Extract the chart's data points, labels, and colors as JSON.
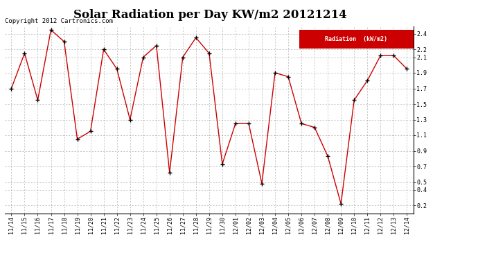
{
  "title": "Solar Radiation per Day KW/m2 20121214",
  "legend_label": "Radiation  (kW/m2)",
  "copyright": "Copyright 2012 Cartronics.com",
  "dates": [
    "11/14",
    "11/15",
    "11/16",
    "11/17",
    "11/18",
    "11/19",
    "11/20",
    "11/21",
    "11/22",
    "11/23",
    "11/24",
    "11/25",
    "11/26",
    "11/27",
    "11/28",
    "11/29",
    "11/30",
    "12/01",
    "12/02",
    "12/03",
    "12/04",
    "12/05",
    "12/06",
    "12/07",
    "12/08",
    "12/09",
    "12/10",
    "12/11",
    "12/12",
    "12/13",
    "12/14"
  ],
  "values": [
    1.7,
    2.15,
    1.55,
    2.45,
    2.3,
    1.05,
    1.15,
    2.2,
    1.95,
    1.3,
    2.1,
    2.25,
    0.62,
    2.1,
    2.35,
    2.15,
    0.73,
    1.25,
    1.25,
    0.48,
    1.9,
    1.85,
    1.25,
    1.2,
    0.83,
    0.22,
    1.55,
    1.8,
    2.12,
    2.12,
    1.95
  ],
  "line_color": "#cc0000",
  "marker_color": "#000000",
  "background_color": "#ffffff",
  "plot_bg_color": "#ffffff",
  "grid_color": "#999999",
  "ylim": [
    0.1,
    2.5
  ],
  "yticks": [
    0.2,
    0.4,
    0.5,
    0.7,
    0.9,
    1.1,
    1.3,
    1.5,
    1.7,
    1.9,
    2.1,
    2.2,
    2.4
  ],
  "legend_bg": "#cc0000",
  "legend_text_color": "#ffffff",
  "title_fontsize": 12,
  "tick_fontsize": 6,
  "copyright_fontsize": 6.5
}
